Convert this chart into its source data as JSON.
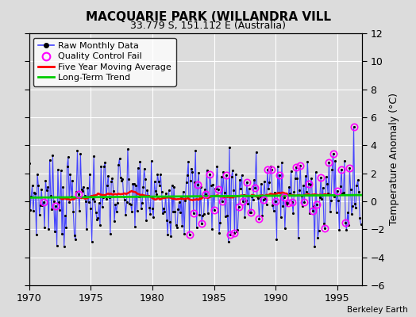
{
  "title": "MACQUARIE PARK (WILLANDRA VILL",
  "subtitle": "33.779 S, 151.112 E (Australia)",
  "ylabel": "Temperature Anomaly (°C)",
  "credit": "Berkeley Earth",
  "xlim": [
    1970,
    1997
  ],
  "ylim": [
    -6,
    12
  ],
  "yticks": [
    -6,
    -4,
    -2,
    0,
    2,
    4,
    6,
    8,
    10,
    12
  ],
  "xticks": [
    1970,
    1975,
    1980,
    1985,
    1990,
    1995
  ],
  "raw_color": "#4444ff",
  "moving_avg_color": "#ff0000",
  "trend_color": "#00cc00",
  "qc_color": "#ff00ff",
  "background_color": "#dcdcdc",
  "grid_color": "#ffffff",
  "title_fontsize": 11,
  "subtitle_fontsize": 9,
  "legend_fontsize": 8,
  "credit_fontsize": 7.5
}
